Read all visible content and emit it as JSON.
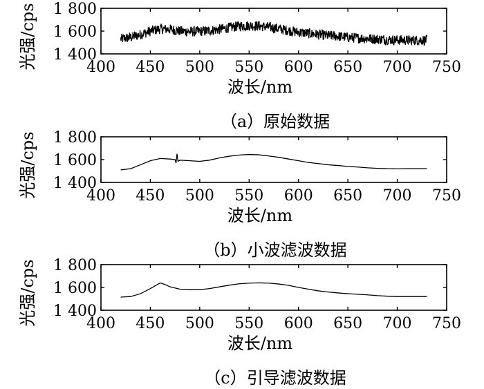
{
  "chart_data": [
    {
      "type": "line",
      "caption": "（a）原始数据",
      "xlabel": "波长/nm",
      "ylabel": "光强/cps",
      "xlim": [
        400,
        750
      ],
      "ylim": [
        1400,
        1800
      ],
      "xticks": [
        "400",
        "450",
        "500",
        "550",
        "600",
        "650",
        "700",
        "750"
      ],
      "yticks": [
        "1 400",
        "1 600",
        "1 800"
      ],
      "noise_amplitude": 45,
      "series": [
        {
          "x": [
            420,
            430,
            440,
            450,
            460,
            470,
            480,
            490,
            500,
            510,
            520,
            530,
            540,
            550,
            560,
            570,
            580,
            590,
            600,
            610,
            620,
            630,
            640,
            650,
            660,
            670,
            680,
            690,
            700,
            710,
            720,
            730
          ],
          "y": [
            1530,
            1545,
            1570,
            1600,
            1620,
            1615,
            1600,
            1595,
            1598,
            1605,
            1615,
            1630,
            1645,
            1648,
            1645,
            1635,
            1620,
            1605,
            1590,
            1580,
            1570,
            1560,
            1555,
            1545,
            1540,
            1535,
            1530,
            1525,
            1522,
            1520,
            1520,
            1521
          ]
        }
      ]
    },
    {
      "type": "line",
      "caption": "（b）小波滤波数据",
      "xlabel": "波长/nm",
      "ylabel": "光强/cps",
      "xlim": [
        400,
        750
      ],
      "ylim": [
        1400,
        1800
      ],
      "xticks": [
        "400",
        "450",
        "500",
        "550",
        "600",
        "650",
        "700",
        "750"
      ],
      "yticks": [
        "1 400",
        "1 600",
        "1 800"
      ],
      "series": [
        {
          "x": [
            420,
            430,
            440,
            450,
            460,
            470,
            475,
            476,
            477,
            478,
            480,
            490,
            500,
            510,
            520,
            530,
            540,
            550,
            560,
            570,
            580,
            590,
            600,
            610,
            620,
            630,
            640,
            650,
            660,
            670,
            680,
            690,
            700,
            710,
            720,
            730
          ],
          "y": [
            1510,
            1520,
            1555,
            1590,
            1610,
            1605,
            1600,
            1570,
            1650,
            1585,
            1595,
            1590,
            1585,
            1595,
            1615,
            1630,
            1640,
            1645,
            1642,
            1632,
            1620,
            1605,
            1590,
            1575,
            1565,
            1555,
            1548,
            1540,
            1535,
            1528,
            1523,
            1520,
            1519,
            1520,
            1520,
            1520
          ]
        }
      ]
    },
    {
      "type": "line",
      "caption": "（c）引导滤波数据",
      "xlabel": "波长/nm",
      "ylabel": "光强/cps",
      "xlim": [
        400,
        750
      ],
      "ylim": [
        1400,
        1800
      ],
      "xticks": [
        "400",
        "450",
        "500",
        "550",
        "600",
        "650",
        "700",
        "750"
      ],
      "yticks": [
        "1 400",
        "1 600",
        "1 800"
      ],
      "series": [
        {
          "x": [
            420,
            430,
            440,
            450,
            455,
            460,
            465,
            470,
            480,
            490,
            500,
            510,
            520,
            530,
            540,
            550,
            560,
            570,
            580,
            590,
            600,
            610,
            620,
            630,
            640,
            650,
            660,
            670,
            680,
            690,
            700,
            710,
            720,
            730
          ],
          "y": [
            1515,
            1520,
            1545,
            1590,
            1615,
            1640,
            1625,
            1605,
            1585,
            1580,
            1580,
            1590,
            1605,
            1620,
            1632,
            1638,
            1640,
            1638,
            1630,
            1618,
            1600,
            1585,
            1570,
            1560,
            1552,
            1545,
            1540,
            1535,
            1528,
            1523,
            1520,
            1520,
            1520,
            1520
          ]
        }
      ]
    }
  ]
}
